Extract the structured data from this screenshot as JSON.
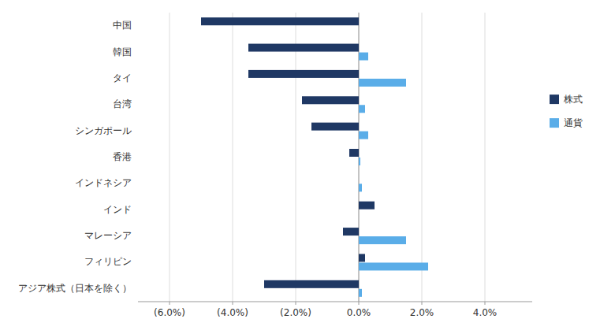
{
  "chart_data": {
    "type": "bar",
    "orientation": "horizontal",
    "categories": [
      "中国",
      "韓国",
      "タイ",
      "台湾",
      "シンガポール",
      "香港",
      "インドネシア",
      "インド",
      "マレーシア",
      "フィリピン",
      "アジア株式（日本を除く）"
    ],
    "series": [
      {
        "name": "株式",
        "color": "#1f3864",
        "values": [
          -5.0,
          -3.5,
          -3.5,
          -1.8,
          -1.5,
          -0.3,
          0.0,
          0.5,
          -0.5,
          0.2,
          -3.0
        ]
      },
      {
        "name": "通貨",
        "color": "#5aade8",
        "values": [
          0.0,
          0.3,
          1.5,
          0.2,
          0.3,
          0.05,
          0.1,
          0.0,
          1.5,
          2.2,
          0.1
        ]
      }
    ],
    "xlim": [
      -7.0,
      5.5
    ],
    "xticks": [
      {
        "value": -6.0,
        "label": "(6.0%)"
      },
      {
        "value": -4.0,
        "label": "(4.0%)"
      },
      {
        "value": -2.0,
        "label": "(2.0%)"
      },
      {
        "value": 0.0,
        "label": "0.0%"
      },
      {
        "value": 2.0,
        "label": "2.0%"
      },
      {
        "value": 4.0,
        "label": "4.0%"
      }
    ],
    "grid": true,
    "legend": "right"
  }
}
